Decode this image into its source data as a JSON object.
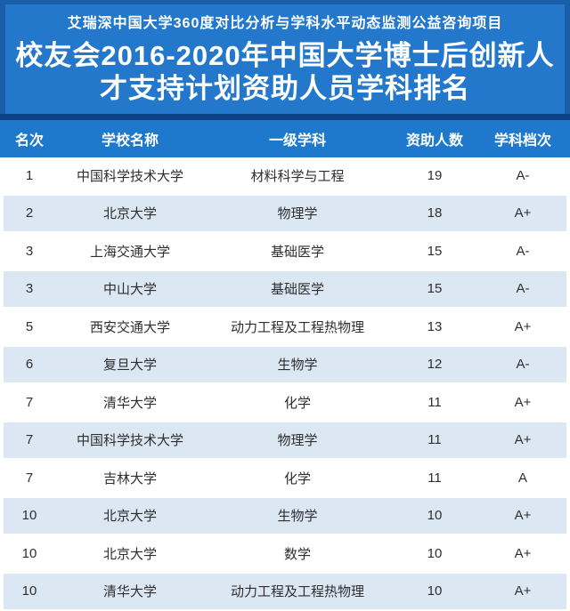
{
  "banner": {
    "subtitle": "艾瑞深中国大学360度对比分析与学科水平动态监测公益咨询项目",
    "title_line1": "校友会2016-2020年中国大学博士后创新人",
    "title_line2": "才支持计划资助人员学科排名"
  },
  "chart_data": {
    "type": "table",
    "title": "校友会2016-2020年中国大学博士后创新人才支持计划资助人员学科排名",
    "subtitle": "艾瑞深中国大学360度对比分析与学科水平动态监测公益咨询项目",
    "columns": [
      "名次",
      "学校名称",
      "一级学科",
      "资助人数",
      "学科档次"
    ],
    "rows": [
      [
        "1",
        "中国科学技术大学",
        "材料科学与工程",
        "19",
        "A-"
      ],
      [
        "2",
        "北京大学",
        "物理学",
        "18",
        "A+"
      ],
      [
        "3",
        "上海交通大学",
        "基础医学",
        "15",
        "A-"
      ],
      [
        "3",
        "中山大学",
        "基础医学",
        "15",
        "A-"
      ],
      [
        "5",
        "西安交通大学",
        "动力工程及工程热物理",
        "13",
        "A+"
      ],
      [
        "6",
        "复旦大学",
        "生物学",
        "12",
        "A-"
      ],
      [
        "7",
        "清华大学",
        "化学",
        "11",
        "A+"
      ],
      [
        "7",
        "中国科学技术大学",
        "物理学",
        "11",
        "A+"
      ],
      [
        "7",
        "吉林大学",
        "化学",
        "11",
        "A"
      ],
      [
        "10",
        "北京大学",
        "生物学",
        "10",
        "A+"
      ],
      [
        "10",
        "北京大学",
        "数学",
        "10",
        "A+"
      ],
      [
        "10",
        "清华大学",
        "动力工程及工程热物理",
        "10",
        "A+"
      ]
    ],
    "layout_hints": {
      "striped": true,
      "stripe_starts_on_second_row": true,
      "all_cells_centered": true
    }
  },
  "colors": {
    "banner_bg": "#2478cb",
    "banner_frame": "#1a5ea9",
    "divider": "#0c4384",
    "header_bg": "#1e78cc",
    "row_bg": "#ffffff",
    "row_alt_bg": "#dce7f4",
    "header_text": "#ffffff",
    "body_text": "#2e2e2e"
  }
}
